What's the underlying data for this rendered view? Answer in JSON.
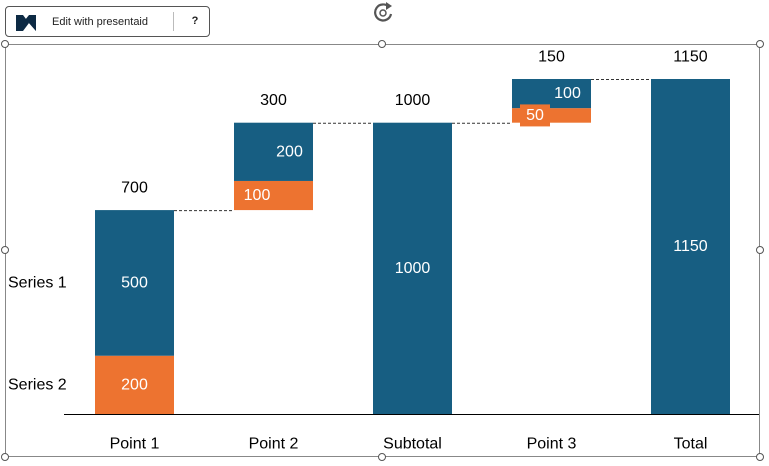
{
  "toolbar": {
    "edit_label": "Edit with presentaid",
    "help_label": "?"
  },
  "icons": {
    "logo": "presentaid-logo-icon",
    "rotate": "rotate-handle-icon"
  },
  "colors": {
    "series1": "#175E82",
    "series2": "#ED7330",
    "connector": "#333333",
    "axis": "#000000"
  },
  "chart_data": {
    "type": "bar",
    "subtype": "stacked-waterfall",
    "categories": [
      "Point 1",
      "Point 2",
      "Subtotal",
      "Point 3",
      "Total"
    ],
    "series_labels": [
      "Series 1",
      "Series 2"
    ],
    "bars": [
      {
        "category": "Point 1",
        "base": 0,
        "series1": 500,
        "series2": 200,
        "total_label": "700",
        "labels": {
          "series1": "500",
          "series2": "200"
        }
      },
      {
        "category": "Point 2",
        "base": 700,
        "series1": 200,
        "series2": 100,
        "total_label": "300",
        "labels": {
          "series1": "200",
          "series2": "100"
        }
      },
      {
        "category": "Subtotal",
        "base": 0,
        "series1": 1000,
        "series2": 0,
        "total_label": "1000",
        "labels": {
          "series1": "1000"
        }
      },
      {
        "category": "Point 3",
        "base": 1000,
        "series1": 100,
        "series2": 50,
        "total_label": "150",
        "labels": {
          "series1": "100",
          "series2": "50"
        }
      },
      {
        "category": "Total",
        "base": 0,
        "series1": 1150,
        "series2": 0,
        "total_label": "1150",
        "labels": {
          "series1": "1150"
        }
      }
    ],
    "ylim": [
      0,
      1150
    ],
    "grid": false,
    "legend": "left-inline"
  }
}
